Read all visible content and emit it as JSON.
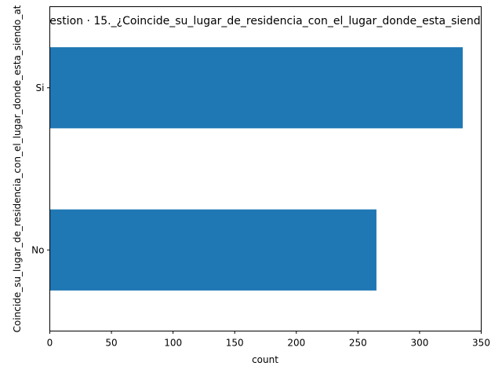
{
  "chart_data": {
    "type": "bar",
    "orientation": "horizontal",
    "title": "estion · 15._¿Coincide_su_lugar_de_residencia_con_el_lugar_donde_esta_siend",
    "xlabel": "count",
    "ylabel": "Coincide_su_lugar_de_residencia_con_el_lugar_donde_esta_siendo_at",
    "categories": [
      "No",
      "Si"
    ],
    "values": [
      265,
      335
    ],
    "xlim": [
      0,
      350
    ],
    "xticks": [
      "0",
      "50",
      "100",
      "150",
      "200",
      "250",
      "300",
      "350"
    ],
    "bar_color": "#1f77b4",
    "grid": false
  }
}
